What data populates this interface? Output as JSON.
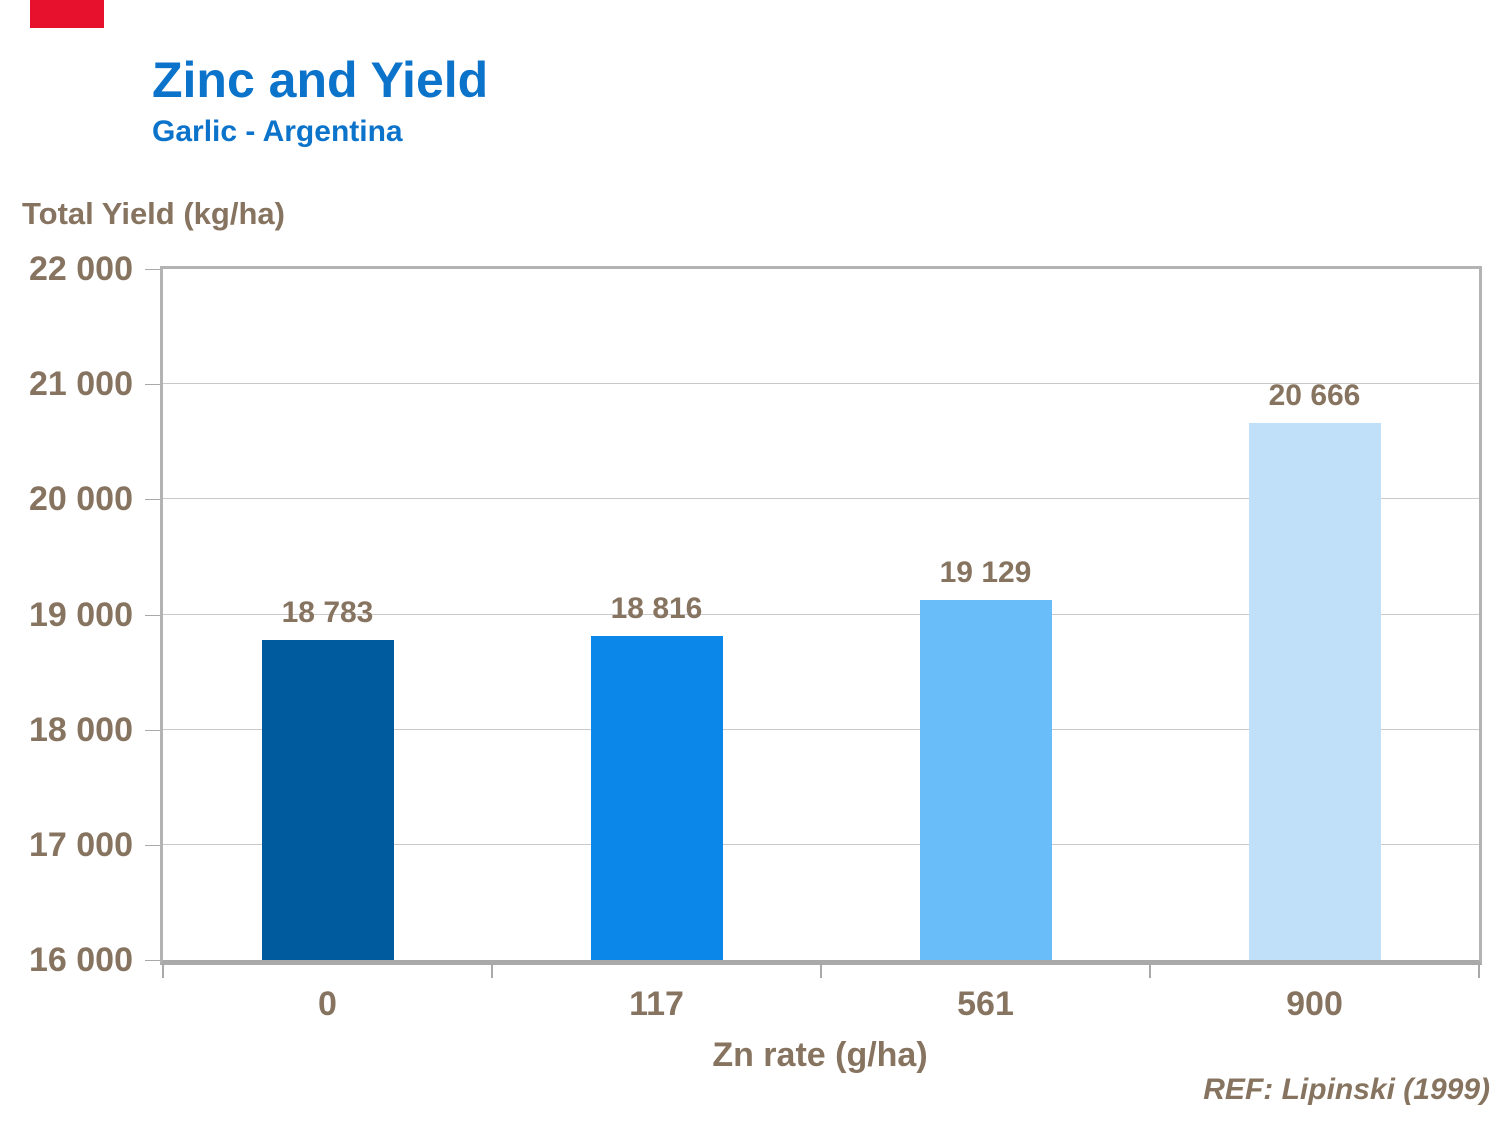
{
  "header": {
    "title": "Zinc and Yield",
    "subtitle": "Garlic - Argentina"
  },
  "footer": {
    "reference": "REF: Lipinski (1999)"
  },
  "decor": {
    "corner_mark_color": "#E8112D"
  },
  "colors": {
    "title_blue": "#0C73CB",
    "text_brown": "#877460",
    "gridline": "#C9C9C9",
    "axis_gray": "#A9A9A9",
    "plot_border_gray": "#B3B3B3"
  },
  "chart_data": {
    "type": "bar",
    "title": "Zinc and Yield",
    "subtitle": "Garlic - Argentina",
    "xlabel": "Zn rate (g/ha)",
    "ylabel": "Total Yield (kg/ha)",
    "categories": [
      "0",
      "117",
      "561",
      "900"
    ],
    "values": [
      18783,
      18816,
      19129,
      20666
    ],
    "value_labels": [
      "18 783",
      "18 816",
      "19 129",
      "20 666"
    ],
    "bar_colors": [
      "#005A9E",
      "#0A87E9",
      "#69BDF9",
      "#C0DFF8"
    ],
    "ylim": [
      16000,
      22000
    ],
    "ytick_values": [
      16000,
      17000,
      18000,
      19000,
      20000,
      21000,
      22000
    ],
    "ytick_labels": [
      "16 000",
      "17 000",
      "18 000",
      "19 000",
      "20 000",
      "21 000",
      "22 000"
    ],
    "grid": true,
    "legend": "none"
  }
}
